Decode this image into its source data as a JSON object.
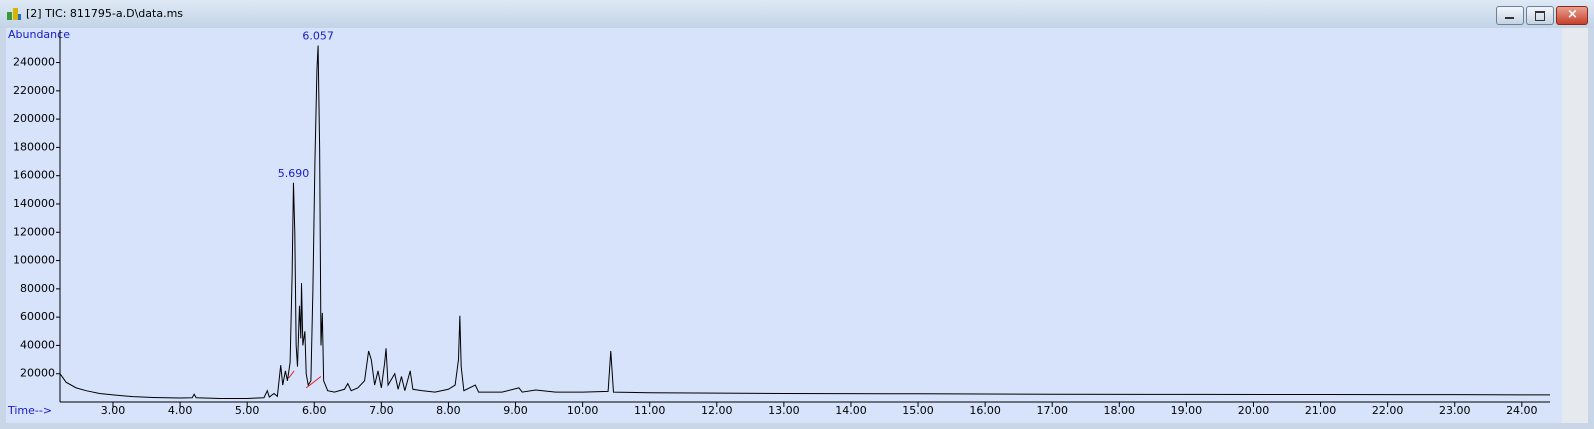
{
  "window": {
    "title": "[2] TIC: 811795-a.D\\data.ms"
  },
  "chart_data": {
    "type": "line",
    "y_label": "Abundance",
    "x_label": "Time-->",
    "color": "#000000",
    "xlim": [
      2.21,
      24.42
    ],
    "ylim": [
      0,
      263000
    ],
    "xticks": [
      {
        "value": 3,
        "label": "3.00"
      },
      {
        "value": 4,
        "label": "4.00"
      },
      {
        "value": 5,
        "label": "5.00"
      },
      {
        "value": 6,
        "label": "6.00"
      },
      {
        "value": 7,
        "label": "7.00"
      },
      {
        "value": 8,
        "label": "8.00"
      },
      {
        "value": 9,
        "label": "9.00"
      },
      {
        "value": 10,
        "label": "10.00"
      },
      {
        "value": 11,
        "label": "11.00"
      },
      {
        "value": 12,
        "label": "12.00"
      },
      {
        "value": 13,
        "label": "13.00"
      },
      {
        "value": 14,
        "label": "14.00"
      },
      {
        "value": 15,
        "label": "15.00"
      },
      {
        "value": 16,
        "label": "16.00"
      },
      {
        "value": 17,
        "label": "17.00"
      },
      {
        "value": 18,
        "label": "18.00"
      },
      {
        "value": 19,
        "label": "19.00"
      },
      {
        "value": 20,
        "label": "20.00"
      },
      {
        "value": 21,
        "label": "21.00"
      },
      {
        "value": 22,
        "label": "22.00"
      },
      {
        "value": 23,
        "label": "23.00"
      },
      {
        "value": 24,
        "label": "24.00"
      }
    ],
    "yticks": [
      20000,
      40000,
      60000,
      80000,
      100000,
      120000,
      140000,
      160000,
      180000,
      200000,
      220000,
      240000
    ],
    "x": [
      2.21,
      2.3,
      2.45,
      2.6,
      2.8,
      3.0,
      3.3,
      3.6,
      4.0,
      4.18,
      4.21,
      4.24,
      4.6,
      5.0,
      5.25,
      5.3,
      5.33,
      5.4,
      5.45,
      5.5,
      5.53,
      5.57,
      5.6,
      5.64,
      5.67,
      5.69,
      5.71,
      5.73,
      5.75,
      5.78,
      5.8,
      5.81,
      5.83,
      5.86,
      5.88,
      5.91,
      5.95,
      5.98,
      6.01,
      6.04,
      6.057,
      6.08,
      6.1,
      6.12,
      6.14,
      6.2,
      6.3,
      6.45,
      6.5,
      6.55,
      6.65,
      6.75,
      6.81,
      6.85,
      6.9,
      6.95,
      7.0,
      7.05,
      7.07,
      7.1,
      7.2,
      7.25,
      7.3,
      7.35,
      7.43,
      7.47,
      7.6,
      7.8,
      8.0,
      8.1,
      8.15,
      8.17,
      8.19,
      8.23,
      8.4,
      8.45,
      8.8,
      9.05,
      9.1,
      9.3,
      9.6,
      10.0,
      10.38,
      10.42,
      10.46,
      11.0,
      13.0,
      15.0,
      17.0,
      19.0,
      21.0,
      23.0,
      24.42
    ],
    "values": [
      20000,
      14000,
      10000,
      8000,
      6000,
      5000,
      3800,
      3200,
      2800,
      3000,
      5500,
      3000,
      2500,
      2500,
      3000,
      8000,
      3500,
      6000,
      4000,
      26000,
      12000,
      22000,
      15000,
      28000,
      90000,
      155000,
      120000,
      40000,
      25000,
      68000,
      45000,
      84000,
      40000,
      50000,
      20000,
      12000,
      15000,
      80000,
      170000,
      235000,
      252000,
      180000,
      40000,
      63000,
      15000,
      8000,
      7000,
      9000,
      13000,
      8000,
      10000,
      15000,
      36000,
      30000,
      12000,
      22000,
      10000,
      28000,
      38000,
      12000,
      20000,
      9000,
      18000,
      8000,
      22000,
      9000,
      8000,
      7000,
      9000,
      12000,
      30000,
      61000,
      25000,
      8000,
      12000,
      7000,
      7000,
      10000,
      7000,
      8500,
      7000,
      7000,
      7500,
      36000,
      7000,
      6500,
      6000,
      5800,
      5500,
      5400,
      5300,
      5200,
      5000
    ],
    "annotations": [
      {
        "x": 5.69,
        "y": 155000,
        "label": "5.690"
      },
      {
        "x": 6.057,
        "y": 252000,
        "label": "6.057"
      }
    ],
    "baselines": {
      "color": "#e02020",
      "segments": [
        {
          "x": [
            5.62,
            5.7
          ],
          "y": [
            17000,
            22000
          ]
        },
        {
          "x": [
            5.88,
            6.1
          ],
          "y": [
            10000,
            18000
          ]
        }
      ]
    }
  }
}
